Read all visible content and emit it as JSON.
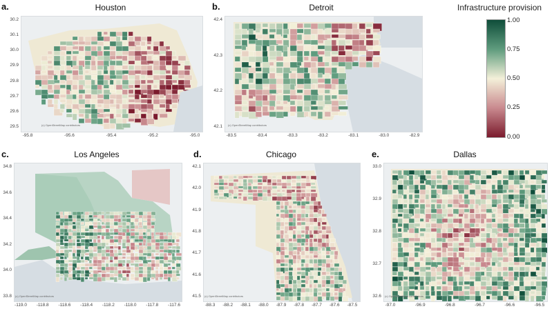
{
  "legend": {
    "title": "Infrastructure provision",
    "ticks": [
      "1.00",
      "0.75",
      "0.50",
      "0.25",
      "0.00"
    ],
    "colors": [
      "#0f4d3a",
      "#5f9c7e",
      "#f4f0d9",
      "#c98a8f",
      "#7b1b2d"
    ]
  },
  "credit": "(c) OpenStreetMap contributors",
  "panels": [
    {
      "id": "houston",
      "letter": "a.",
      "title": "Houston",
      "yticks": [
        "30.2",
        "30.1",
        "30.0",
        "29.9",
        "29.8",
        "29.7",
        "29.6",
        "29.5"
      ],
      "xticks": [
        "-95.8",
        "-95.6",
        "-95.4",
        "-95.2",
        "-95.0"
      ]
    },
    {
      "id": "detroit",
      "letter": "b.",
      "title": "Detroit",
      "yticks": [
        "42.4",
        "42.3",
        "42.2",
        "42.1"
      ],
      "xticks": [
        "-83.5",
        "-83.4",
        "-83.3",
        "-83.2",
        "-83.1",
        "-83.0",
        "-82.9"
      ]
    },
    {
      "id": "losangeles",
      "letter": "c.",
      "title": "Los Angeles",
      "yticks": [
        "34.8",
        "34.6",
        "34.4",
        "34.2",
        "34.0",
        "33.8"
      ],
      "xticks": [
        "-119.0",
        "-118.8",
        "-118.6",
        "-118.4",
        "-118.2",
        "-118.0",
        "-117.8",
        "-117.6"
      ]
    },
    {
      "id": "chicago",
      "letter": "d.",
      "title": "Chicago",
      "yticks": [
        "42.1",
        "42.0",
        "41.9",
        "41.8",
        "41.7",
        "41.6",
        "41.5"
      ],
      "xticks": [
        "-88.3",
        "-88.2",
        "-88.1",
        "-88.0",
        "-87.9",
        "-87.8",
        "-87.7",
        "-87.6",
        "-87.5"
      ]
    },
    {
      "id": "dallas",
      "letter": "e.",
      "title": "Dallas",
      "yticks": [
        "33.0",
        "32.9",
        "32.8",
        "32.7",
        "32.6"
      ],
      "xticks": [
        "-97.0",
        "-96.9",
        "-96.8",
        "-96.7",
        "-96.6",
        "-96.5"
      ]
    }
  ]
}
